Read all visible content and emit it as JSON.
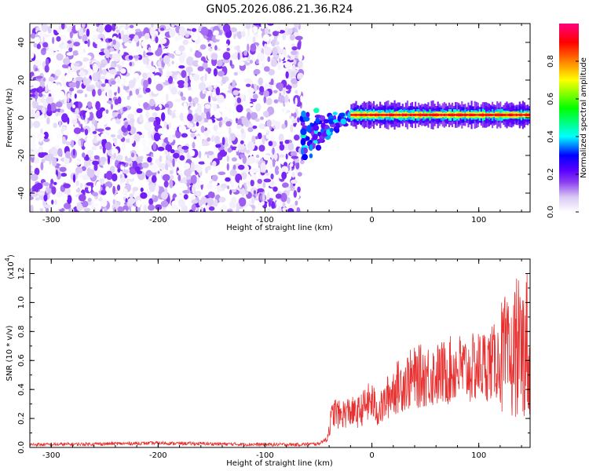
{
  "title": "GN05.2026.086.21.36.R24",
  "chart_data": [
    {
      "type": "heatmap",
      "name": "spectrogram",
      "xlabel": "Height of straight line (km)",
      "ylabel": "Frequency (Hz)",
      "xlim": [
        -320,
        148
      ],
      "ylim": [
        -50,
        50
      ],
      "xticks": [
        -300,
        -200,
        -100,
        0,
        100
      ],
      "yticks": [
        -40,
        -20,
        0,
        20,
        40
      ],
      "noise_region_x": [
        -320,
        -65
      ],
      "transition_region_x": [
        -65,
        -20
      ],
      "signal_frequency_hz": 1.5,
      "colorbar": {
        "label": "Normalized spectral amplitude",
        "range": [
          0.0,
          1.0
        ],
        "ticks": [
          0.0,
          0.2,
          0.4,
          0.6,
          0.8
        ],
        "colormap": [
          "#ffffff",
          "#d8c8f4",
          "#8a3cf0",
          "#5a00ff",
          "#0000ff",
          "#00ffff",
          "#00ff00",
          "#ffff00",
          "#ff8000",
          "#ff0000",
          "#ff0080"
        ]
      }
    },
    {
      "type": "line",
      "name": "snr",
      "xlabel": "Height of straight line (km)",
      "ylabel": "SNR (10 * v/v)",
      "y_multiplier_label": "(x10",
      "y_multiplier_exponent": "4",
      "y_multiplier_close": ")",
      "xlim": [
        -320,
        148
      ],
      "ylim": [
        0,
        1.3
      ],
      "xticks": [
        -300,
        -200,
        -100,
        0,
        100
      ],
      "yticks": [
        0.0,
        0.2,
        0.4,
        0.6,
        0.8,
        1.0,
        1.2
      ],
      "color": "#e83030",
      "x": [
        -320,
        -300,
        -250,
        -200,
        -150,
        -100,
        -70,
        -50,
        -42,
        -38,
        -35,
        -30,
        -25,
        -20,
        -15,
        -10,
        -5,
        0,
        5,
        10,
        15,
        20,
        25,
        30,
        40,
        50,
        60,
        70,
        80,
        90,
        100,
        110,
        120,
        125,
        130,
        135,
        140,
        145,
        148
      ],
      "values": [
        0.02,
        0.02,
        0.025,
        0.03,
        0.025,
        0.02,
        0.02,
        0.025,
        0.06,
        0.2,
        0.25,
        0.22,
        0.24,
        0.25,
        0.23,
        0.26,
        0.3,
        0.32,
        0.25,
        0.28,
        0.35,
        0.4,
        0.42,
        0.45,
        0.48,
        0.5,
        0.5,
        0.52,
        0.55,
        0.53,
        0.56,
        0.58,
        0.6,
        0.62,
        0.55,
        0.72,
        0.65,
        0.75,
        0.45
      ]
    }
  ]
}
